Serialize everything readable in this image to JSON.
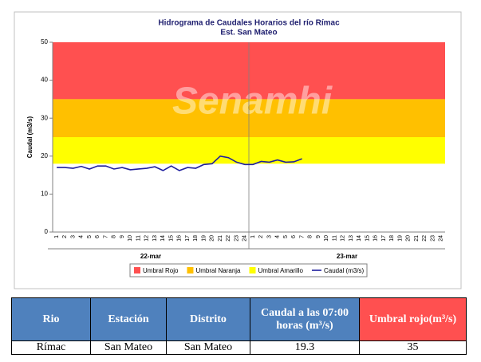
{
  "chart_data": {
    "type": "line",
    "title": "Hidrograma de Caudales Horarios del río Rímac",
    "subtitle": "Est. San Mateo",
    "watermark": "Senamhi",
    "y_label": "Caudal  (m3/s)",
    "ylim": [
      0,
      50
    ],
    "yticks": [
      0,
      10,
      20,
      30,
      40,
      50
    ],
    "categories": [
      1,
      2,
      3,
      4,
      5,
      6,
      7,
      8,
      9,
      10,
      11,
      12,
      13,
      14,
      15,
      16,
      17,
      18,
      19,
      20,
      21,
      22,
      23,
      24,
      1,
      2,
      3,
      4,
      5,
      6,
      7,
      8,
      9,
      10,
      11,
      12,
      13,
      14,
      15,
      16,
      17,
      18,
      19,
      20,
      21,
      22,
      23,
      24
    ],
    "x_groups": [
      "22-mar",
      "23-mar"
    ],
    "thresholds": [
      {
        "name": "Umbral Rojo",
        "color": "#ff5050",
        "value": 35
      },
      {
        "name": "Umbral Naranja",
        "color": "#ffc000",
        "value": 25
      },
      {
        "name": "Umbral Amarillo",
        "color": "#ffff00",
        "value": 18
      }
    ],
    "series": [
      {
        "name": "Caudal (m3/s)",
        "color": "#1f1f9f",
        "values": [
          17,
          17,
          16.8,
          17.3,
          16.6,
          17.4,
          17.4,
          16.6,
          17,
          16.4,
          16.6,
          16.8,
          17.2,
          16.2,
          17.4,
          16.2,
          17,
          16.8,
          17.8,
          18,
          20,
          19.6,
          18.4,
          17.8,
          17.8,
          18.6,
          18.4,
          19,
          18.4,
          18.5,
          19.3,
          null,
          null,
          null,
          null,
          null,
          null,
          null,
          null,
          null,
          null,
          null,
          null,
          null,
          null,
          null,
          null,
          null
        ]
      }
    ]
  },
  "table": {
    "header": [
      "Rio",
      "Estación",
      "Distrito",
      "Caudal a las 07:00 horas (m³/s)",
      "Umbral rojo(m³/s)"
    ],
    "rows": [
      [
        "Rímac",
        "San Mateo",
        "San Mateo",
        "19.3",
        "35"
      ]
    ]
  }
}
